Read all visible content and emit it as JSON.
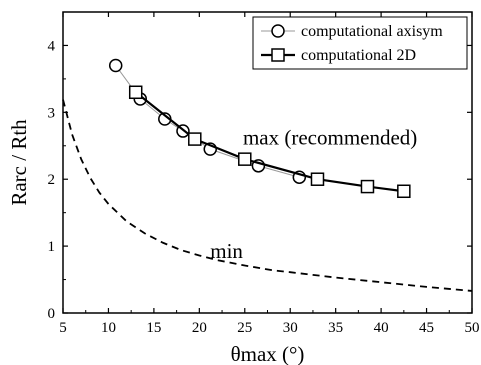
{
  "chart_data": {
    "type": "line",
    "xlabel": "θmax (°)",
    "ylabel": "Rarc / Rth",
    "xlim": [
      5,
      50
    ],
    "ylim": [
      0,
      4.5
    ],
    "xticks": [
      5,
      10,
      15,
      20,
      25,
      30,
      35,
      40,
      45,
      50
    ],
    "yticks": [
      0,
      1,
      2,
      3,
      4
    ],
    "grid": false,
    "legend_position": "top-right",
    "series": [
      {
        "name": "computational axisym",
        "marker": "circle",
        "color": "#999999",
        "x": [
          10.8,
          13.5,
          16.2,
          18.2,
          21.2,
          26.5,
          31.0
        ],
        "y": [
          3.7,
          3.2,
          2.9,
          2.72,
          2.45,
          2.2,
          2.03
        ]
      },
      {
        "name": "computational 2D",
        "marker": "square",
        "color": "#000000",
        "x": [
          13.0,
          19.5,
          25.0,
          33.0,
          38.5,
          42.5
        ],
        "y": [
          3.3,
          2.6,
          2.3,
          2.0,
          1.89,
          1.82
        ]
      },
      {
        "name": "",
        "style": "dashed",
        "color": "#000000",
        "x": [
          5,
          6,
          7,
          8,
          9,
          10,
          12,
          14,
          16,
          18,
          20,
          22,
          25,
          28,
          30,
          35,
          40,
          45,
          50
        ],
        "y": [
          3.19,
          2.67,
          2.3,
          2.02,
          1.8,
          1.63,
          1.37,
          1.19,
          1.05,
          0.94,
          0.86,
          0.79,
          0.71,
          0.64,
          0.61,
          0.53,
          0.46,
          0.39,
          0.33
        ]
      }
    ],
    "annotations": [
      {
        "text": "max (recommended)",
        "x": 24.8,
        "y": 2.52
      },
      {
        "text": "min",
        "x": 21.2,
        "y": 0.82
      }
    ]
  }
}
